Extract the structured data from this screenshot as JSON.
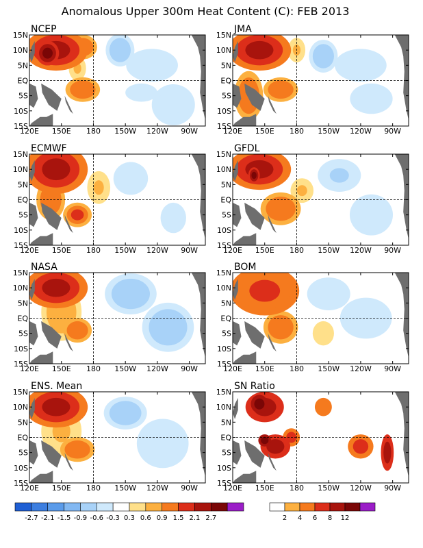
{
  "chart_data": {
    "type": "heatmap",
    "title": "Anomalous Upper 300m Heat Content (C): FEB 2013",
    "x_ticks": [
      "120E",
      "150E",
      "180",
      "150W",
      "120W",
      "90W"
    ],
    "y_ticks": [
      "15N",
      "10N",
      "5N",
      "EQ",
      "5S",
      "10S",
      "15S"
    ],
    "x_range_lon": [
      120,
      285
    ],
    "y_range_lat": [
      -15,
      15
    ],
    "reference_lines": {
      "lon": 180,
      "lat": 0
    },
    "panels": [
      {
        "name": "NCEP",
        "scale": "anomaly",
        "features": [
          {
            "lon": 145,
            "lat": 10,
            "rx": 22,
            "ry": 5,
            "v": 2.1
          },
          {
            "lon": 137,
            "lat": 9,
            "rx": 8,
            "ry": 3,
            "v": 2.8
          },
          {
            "lon": 170,
            "lat": 11,
            "rx": 10,
            "ry": 3,
            "v": 1.2
          },
          {
            "lon": 170,
            "lat": -3,
            "rx": 12,
            "ry": 3,
            "v": 1.3
          },
          {
            "lon": 165,
            "lat": 4,
            "rx": 6,
            "ry": 3,
            "v": 0.7
          },
          {
            "lon": 205,
            "lat": 10,
            "rx": 10,
            "ry": 4,
            "v": -0.9
          },
          {
            "lon": 235,
            "lat": 5,
            "rx": 18,
            "ry": 4,
            "v": -0.6
          },
          {
            "lon": 255,
            "lat": -8,
            "rx": 15,
            "ry": 5,
            "v": -0.6
          },
          {
            "lon": 225,
            "lat": -4,
            "rx": 15,
            "ry": 3,
            "v": -0.4
          }
        ]
      },
      {
        "name": "JMA",
        "scale": "anomaly",
        "features": [
          {
            "lon": 145,
            "lat": 10,
            "rx": 22,
            "ry": 5,
            "v": 2.2
          },
          {
            "lon": 135,
            "lat": -5,
            "rx": 10,
            "ry": 6,
            "v": 1.2
          },
          {
            "lon": 165,
            "lat": -3,
            "rx": 12,
            "ry": 3,
            "v": 1.2
          },
          {
            "lon": 180,
            "lat": 10,
            "rx": 6,
            "ry": 3,
            "v": 0.7
          },
          {
            "lon": 205,
            "lat": 8,
            "rx": 10,
            "ry": 4,
            "v": -0.8
          },
          {
            "lon": 240,
            "lat": 5,
            "rx": 18,
            "ry": 4,
            "v": -0.6
          },
          {
            "lon": 250,
            "lat": -6,
            "rx": 20,
            "ry": 5,
            "v": -0.5
          }
        ]
      },
      {
        "name": "ECMWF",
        "scale": "anomaly",
        "features": [
          {
            "lon": 145,
            "lat": 10,
            "rx": 22,
            "ry": 6,
            "v": 2.2
          },
          {
            "lon": 140,
            "lat": 0,
            "rx": 10,
            "ry": 5,
            "v": 1.2
          },
          {
            "lon": 165,
            "lat": -5,
            "rx": 10,
            "ry": 3,
            "v": 1.5
          },
          {
            "lon": 185,
            "lat": 4,
            "rx": 8,
            "ry": 4,
            "v": 0.6
          },
          {
            "lon": 215,
            "lat": 7,
            "rx": 12,
            "ry": 4,
            "v": -0.6
          },
          {
            "lon": 255,
            "lat": -6,
            "rx": 12,
            "ry": 5,
            "v": -0.5
          }
        ]
      },
      {
        "name": "GFDL",
        "scale": "anomaly",
        "features": [
          {
            "lon": 145,
            "lat": 10,
            "rx": 22,
            "ry": 5,
            "v": 2.2
          },
          {
            "lon": 140,
            "lat": 8,
            "rx": 4,
            "ry": 2,
            "v": 2.8
          },
          {
            "lon": 165,
            "lat": -3,
            "rx": 14,
            "ry": 4,
            "v": 1.2
          },
          {
            "lon": 185,
            "lat": 3,
            "rx": 8,
            "ry": 3,
            "v": 0.6
          },
          {
            "lon": 220,
            "lat": 8,
            "rx": 15,
            "ry": 4,
            "v": -0.7
          },
          {
            "lon": 250,
            "lat": -5,
            "rx": 15,
            "ry": 5,
            "v": -0.6
          }
        ]
      },
      {
        "name": "NASA",
        "scale": "anomaly",
        "features": [
          {
            "lon": 145,
            "lat": 10,
            "rx": 22,
            "ry": 5,
            "v": 2.3
          },
          {
            "lon": 165,
            "lat": -4,
            "rx": 10,
            "ry": 3,
            "v": 1.4
          },
          {
            "lon": 150,
            "lat": 2,
            "rx": 14,
            "ry": 7,
            "v": 0.8
          },
          {
            "lon": 215,
            "lat": 8,
            "rx": 18,
            "ry": 5,
            "v": -0.9
          },
          {
            "lon": 250,
            "lat": -3,
            "rx": 18,
            "ry": 6,
            "v": -0.8
          }
        ]
      },
      {
        "name": "BOM",
        "scale": "anomaly",
        "features": [
          {
            "lon": 150,
            "lat": 9,
            "rx": 24,
            "ry": 6,
            "v": 1.8
          },
          {
            "lon": 165,
            "lat": -3,
            "rx": 12,
            "ry": 4,
            "v": 1.2
          },
          {
            "lon": 210,
            "lat": 8,
            "rx": 15,
            "ry": 4,
            "v": -0.6
          },
          {
            "lon": 245,
            "lat": 0,
            "rx": 18,
            "ry": 5,
            "v": -0.6
          },
          {
            "lon": 205,
            "lat": -5,
            "rx": 10,
            "ry": 4,
            "v": 0.4
          }
        ]
      },
      {
        "name": "ENS. Mean",
        "scale": "anomaly",
        "features": [
          {
            "lon": 145,
            "lat": 10,
            "rx": 22,
            "ry": 5,
            "v": 2.2
          },
          {
            "lon": 165,
            "lat": -4,
            "rx": 12,
            "ry": 3,
            "v": 1.2
          },
          {
            "lon": 150,
            "lat": 2,
            "rx": 14,
            "ry": 6,
            "v": 0.7
          },
          {
            "lon": 210,
            "lat": 8,
            "rx": 15,
            "ry": 4,
            "v": -0.8
          },
          {
            "lon": 245,
            "lat": -2,
            "rx": 18,
            "ry": 6,
            "v": -0.6
          }
        ]
      },
      {
        "name": "SN Ratio",
        "scale": "sn",
        "features": [
          {
            "lon": 150,
            "lat": 10,
            "rx": 18,
            "ry": 5,
            "v": 9
          },
          {
            "lon": 145,
            "lat": 11,
            "rx": 8,
            "ry": 3,
            "v": 14
          },
          {
            "lon": 160,
            "lat": -3,
            "rx": 14,
            "ry": 4,
            "v": 9
          },
          {
            "lon": 150,
            "lat": -1,
            "rx": 6,
            "ry": 2,
            "v": 14
          },
          {
            "lon": 175,
            "lat": 0,
            "rx": 8,
            "ry": 3,
            "v": 7
          },
          {
            "lon": 240,
            "lat": -3,
            "rx": 12,
            "ry": 4,
            "v": 7
          },
          {
            "lon": 205,
            "lat": 10,
            "rx": 8,
            "ry": 3,
            "v": 5
          },
          {
            "lon": 265,
            "lat": -5,
            "rx": 6,
            "ry": 6,
            "v": 9
          }
        ]
      }
    ],
    "legends": {
      "anomaly": {
        "labels": [
          "-2.7",
          "-2.1",
          "-1.5",
          "-0.9",
          "-0.6",
          "-0.3",
          "0.3",
          "0.6",
          "0.9",
          "1.5",
          "2.1",
          "2.7"
        ],
        "thresholds": [
          -2.7,
          -2.1,
          -1.5,
          -0.9,
          -0.6,
          -0.3,
          0.3,
          0.6,
          0.9,
          1.5,
          2.1,
          2.7
        ],
        "colors": [
          "#1f5fd4",
          "#3c7ee0",
          "#5a9bea",
          "#82b8f2",
          "#a8d2f8",
          "#cfe9fc",
          "#ffffff",
          "#ffe08a",
          "#fcb040",
          "#f57a1e",
          "#dc2e1a",
          "#a8140d",
          "#7a0606",
          "#9b1dc8"
        ]
      },
      "sn": {
        "labels": [
          "2",
          "4",
          "6",
          "8",
          "12"
        ],
        "thresholds": [
          2,
          4,
          6,
          8,
          12
        ],
        "colors": [
          "#ffffff",
          "#fcb040",
          "#f57a1e",
          "#dc2e1a",
          "#a8140d",
          "#7a0606",
          "#9b1dc8"
        ]
      }
    },
    "land_color": "#6e6e6e"
  }
}
